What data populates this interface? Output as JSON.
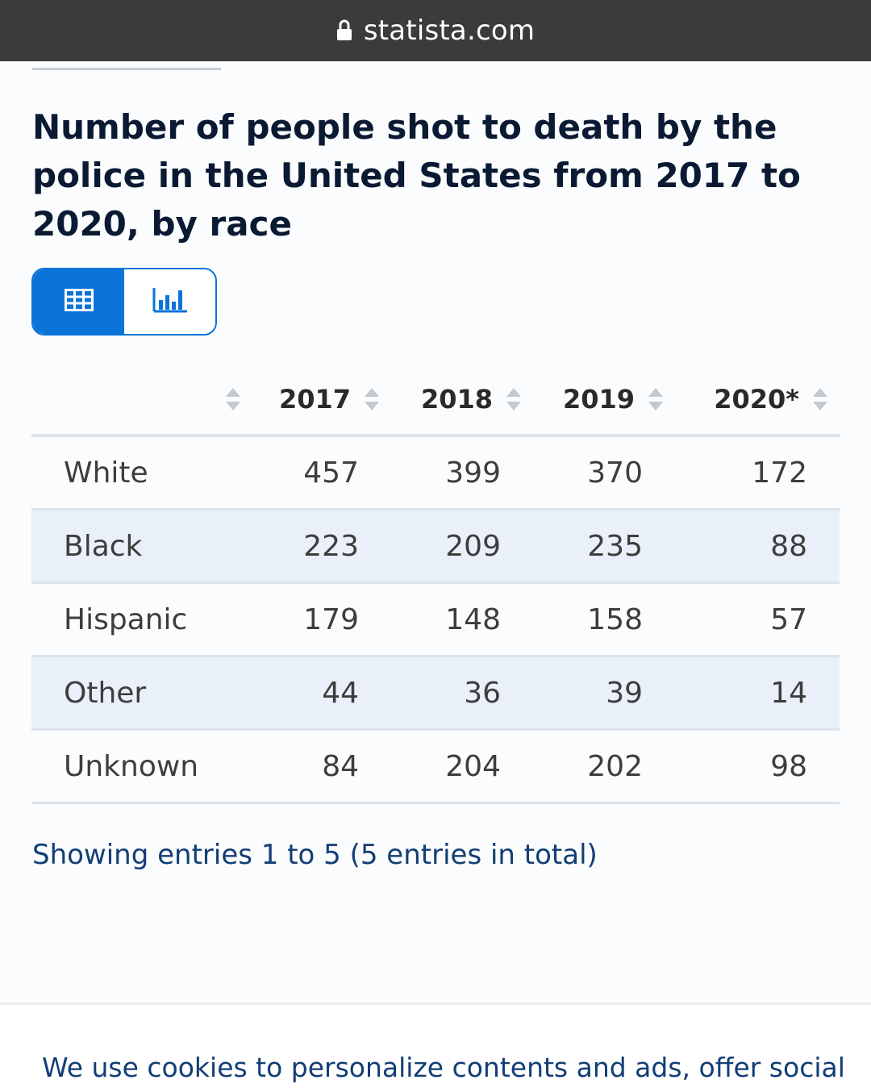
{
  "browser": {
    "url": "statista.com"
  },
  "title": "Number of people shot to death by the police in the United States from 2017 to 2020, by race",
  "view_toggle": {
    "table_icon": "table-grid-icon",
    "chart_icon": "bar-chart-icon",
    "active": "table"
  },
  "table": {
    "columns": [
      "",
      "2017",
      "2018",
      "2019",
      "2020*"
    ],
    "rows": [
      {
        "label": "White",
        "values": [
          "457",
          "399",
          "370",
          "172"
        ]
      },
      {
        "label": "Black",
        "values": [
          "223",
          "209",
          "235",
          "88"
        ]
      },
      {
        "label": "Hispanic",
        "values": [
          "179",
          "148",
          "158",
          "57"
        ]
      },
      {
        "label": "Other",
        "values": [
          "44",
          "36",
          "39",
          "14"
        ]
      },
      {
        "label": "Unknown",
        "values": [
          "84",
          "204",
          "202",
          "98"
        ]
      }
    ]
  },
  "footer": {
    "entries_text": "Showing entries 1 to 5 (5 entries in total)"
  },
  "cookie_banner": {
    "text": "We use cookies to personalize contents and ads, offer social"
  },
  "colors": {
    "accent": "#0a74d9",
    "title": "#0b1a33",
    "link_text": "#123e75",
    "stripe": "#e9f0f9"
  }
}
